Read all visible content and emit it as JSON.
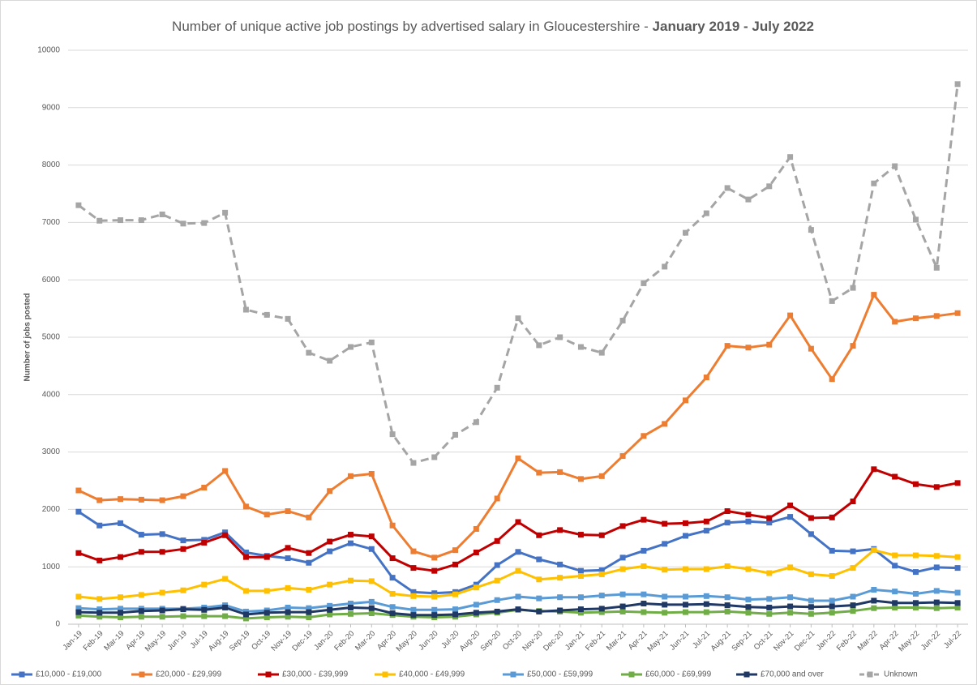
{
  "chart_data": {
    "type": "line",
    "title": "Number of unique active job postings by advertised salary in Gloucestershire -",
    "title_period": "January 2019 - July 2022",
    "y_label": "Number of jobs posted",
    "categories": [
      "Jan-19",
      "Feb-19",
      "Mar-19",
      "Apr-19",
      "May-19",
      "Jun-19",
      "Jul-19",
      "Aug-19",
      "Sep-19",
      "Oct-19",
      "Nov-19",
      "Dec-19",
      "Jan-20",
      "Feb-20",
      "Mar-20",
      "Apr-20",
      "May-20",
      "Jun-20",
      "Jul-20",
      "Aug-20",
      "Sep-20",
      "Oct-20",
      "Nov-20",
      "Dec-20",
      "Jan-21",
      "Feb-21",
      "Mar-21",
      "Apr-21",
      "May-21",
      "Jun-21",
      "Jul-21",
      "Aug-21",
      "Sep-21",
      "Oct-21",
      "Nov-21",
      "Dec-21",
      "Jan-22",
      "Feb-22",
      "Mar-22",
      "Apr-22",
      "May-22",
      "Jun-22",
      "Jul-22"
    ],
    "ylim": [
      0,
      10000
    ],
    "yticks": [
      0,
      1000,
      2000,
      3000,
      4000,
      5000,
      6000,
      7000,
      8000,
      9000,
      10000
    ],
    "grid": true,
    "legend": "bottom",
    "series": [
      {
        "name": "£10,000 - £19,000",
        "color": "#4472c4",
        "dashed": false,
        "values": [
          1960,
          1720,
          1760,
          1560,
          1570,
          1460,
          1470,
          1600,
          1250,
          1190,
          1150,
          1070,
          1270,
          1410,
          1310,
          810,
          560,
          540,
          560,
          690,
          1030,
          1260,
          1130,
          1040,
          930,
          940,
          1160,
          1280,
          1400,
          1540,
          1630,
          1770,
          1790,
          1770,
          1870,
          1570,
          1280,
          1270,
          1310,
          1020,
          910,
          990,
          980
        ]
      },
      {
        "name": "£20,000 - £29,999",
        "color": "#ed7d31",
        "dashed": false,
        "values": [
          2330,
          2160,
          2180,
          2170,
          2160,
          2230,
          2380,
          2670,
          2050,
          1910,
          1970,
          1860,
          2320,
          2580,
          2620,
          1720,
          1270,
          1160,
          1290,
          1660,
          2190,
          2890,
          2640,
          2650,
          2530,
          2580,
          2930,
          3280,
          3490,
          3900,
          4300,
          4850,
          4820,
          4870,
          5380,
          4800,
          4270,
          4850,
          5740,
          5270,
          5330,
          5370,
          5420
        ]
      },
      {
        "name": "£30,000 - £39,999",
        "color": "#c00000",
        "dashed": false,
        "values": [
          1240,
          1110,
          1170,
          1260,
          1260,
          1310,
          1420,
          1550,
          1170,
          1170,
          1330,
          1240,
          1440,
          1560,
          1530,
          1150,
          980,
          930,
          1040,
          1250,
          1450,
          1780,
          1550,
          1640,
          1560,
          1550,
          1710,
          1820,
          1750,
          1760,
          1790,
          1970,
          1910,
          1850,
          2070,
          1850,
          1860,
          2140,
          2700,
          2570,
          2440,
          2390,
          2460
        ]
      },
      {
        "name": "£40,000 - £49,999",
        "color": "#ffc000",
        "dashed": false,
        "values": [
          480,
          440,
          470,
          510,
          550,
          590,
          690,
          790,
          580,
          580,
          630,
          600,
          690,
          760,
          750,
          530,
          490,
          480,
          520,
          640,
          760,
          930,
          780,
          810,
          840,
          870,
          960,
          1010,
          950,
          960,
          960,
          1010,
          960,
          890,
          990,
          870,
          840,
          980,
          1290,
          1200,
          1200,
          1190,
          1170
        ]
      },
      {
        "name": "£50,000 - £59,999",
        "color": "#5b9bd5",
        "dashed": false,
        "values": [
          280,
          260,
          270,
          270,
          270,
          270,
          290,
          330,
          220,
          240,
          290,
          280,
          320,
          360,
          390,
          300,
          250,
          250,
          260,
          340,
          420,
          480,
          450,
          470,
          470,
          500,
          520,
          520,
          480,
          480,
          490,
          470,
          430,
          440,
          470,
          410,
          410,
          480,
          600,
          570,
          530,
          580,
          550
        ]
      },
      {
        "name": "£60,000 - £69,999",
        "color": "#70ad47",
        "dashed": false,
        "values": [
          150,
          130,
          120,
          130,
          130,
          140,
          140,
          140,
          100,
          120,
          130,
          120,
          170,
          180,
          190,
          160,
          130,
          120,
          130,
          170,
          200,
          250,
          230,
          220,
          200,
          210,
          220,
          210,
          200,
          210,
          210,
          220,
          200,
          180,
          200,
          180,
          200,
          230,
          280,
          290,
          290,
          280,
          290
        ]
      },
      {
        "name": "£70,000 and over",
        "color": "#203864",
        "dashed": false,
        "values": [
          210,
          200,
          200,
          230,
          240,
          260,
          250,
          290,
          170,
          200,
          210,
          210,
          250,
          290,
          280,
          190,
          160,
          160,
          170,
          200,
          220,
          260,
          220,
          240,
          260,
          270,
          310,
          360,
          340,
          340,
          350,
          330,
          300,
          290,
          310,
          300,
          310,
          330,
          410,
          370,
          370,
          380,
          370
        ]
      },
      {
        "name": "Unknown",
        "color": "#a5a5a5",
        "dashed": true,
        "values": [
          7300,
          7030,
          7040,
          7040,
          7140,
          6980,
          6990,
          7170,
          5480,
          5390,
          5320,
          4730,
          4590,
          4830,
          4910,
          3310,
          2810,
          2910,
          3300,
          3520,
          4120,
          5330,
          4860,
          5000,
          4830,
          4730,
          5290,
          5940,
          6230,
          6820,
          7160,
          7600,
          7400,
          7630,
          8140,
          6870,
          5630,
          5860,
          7680,
          7980,
          7050,
          6210,
          9410
        ]
      }
    ]
  }
}
